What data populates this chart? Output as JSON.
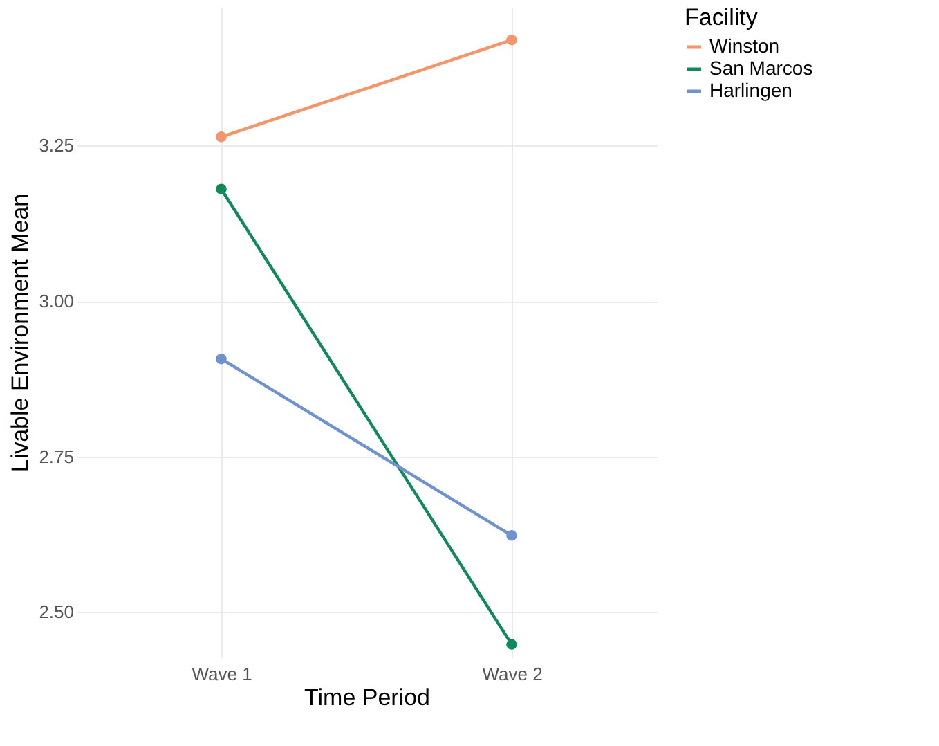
{
  "chart_data": {
    "type": "line",
    "xlabel": "Time Period",
    "ylabel": "Livable Environment Mean",
    "legend_title": "Facility",
    "categories": [
      "Wave 1",
      "Wave 2"
    ],
    "series": [
      {
        "name": "Winston",
        "color": "#f4956b",
        "values": [
          3.264,
          3.42
        ]
      },
      {
        "name": "San Marcos",
        "color": "#118a5a",
        "values": [
          3.18,
          2.448
        ]
      },
      {
        "name": "Harlingen",
        "color": "#6e93cf",
        "values": [
          2.907,
          2.623
        ]
      }
    ],
    "ylim": [
      2.427,
      3.473
    ],
    "yticks": [
      {
        "value": 2.5,
        "label": "2.50"
      },
      2.75,
      {
        "value": 3.0,
        "label": "3.00"
      },
      3.25
    ],
    "grid": true,
    "legend": "right",
    "marker": "circle"
  }
}
